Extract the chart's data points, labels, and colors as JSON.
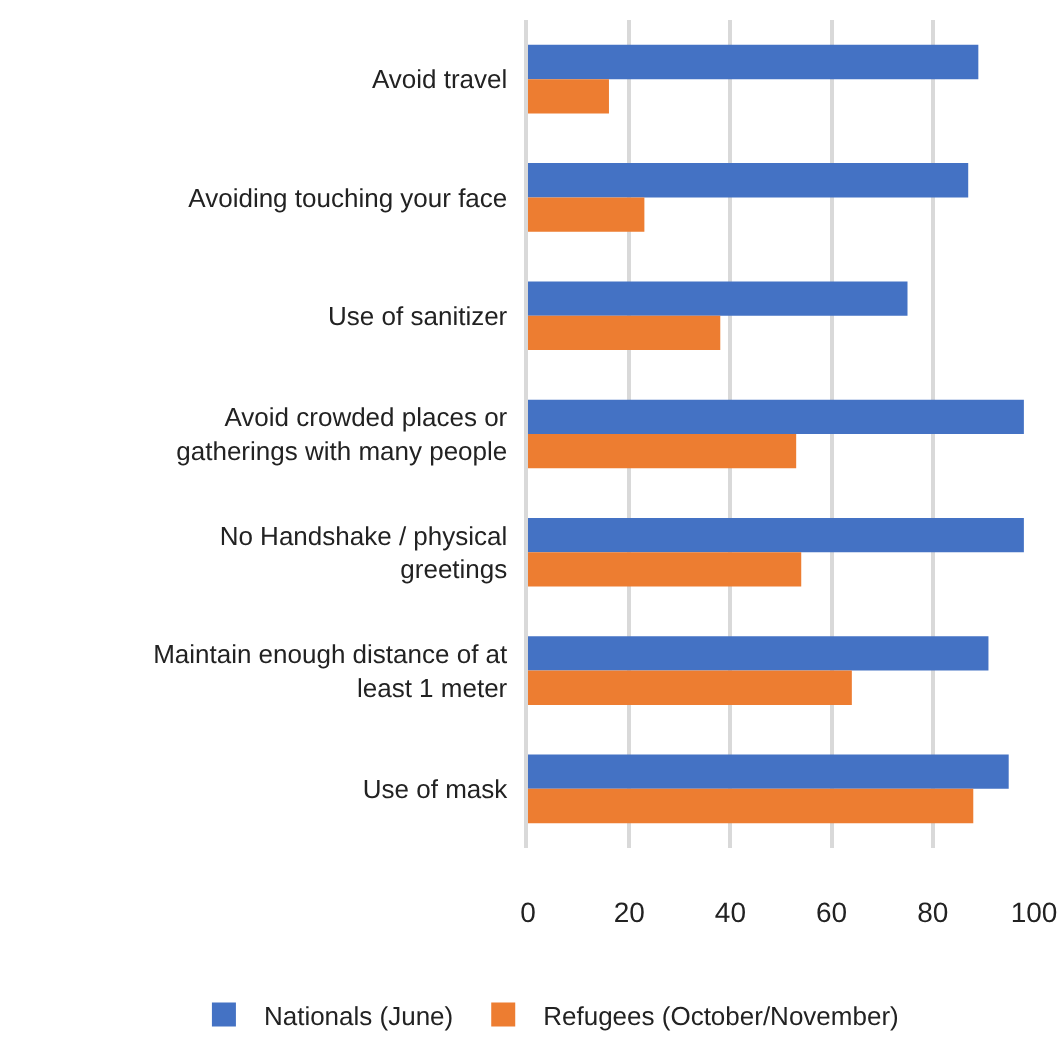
{
  "chart_data": {
    "type": "bar",
    "orientation": "horizontal",
    "categories": [
      "Avoid travel",
      "Avoiding touching your face",
      "Use of sanitizer",
      "Avoid crowded places or gatherings with many people",
      "No Handshake / physical greetings",
      "Maintain enough distance of at least 1 meter",
      "Use of mask"
    ],
    "series": [
      {
        "name": "Nationals (June)",
        "color": "#4472c4",
        "values": [
          89,
          87,
          75,
          98,
          98,
          91,
          95
        ]
      },
      {
        "name": "Refugees (October/November)",
        "color": "#ed7d31",
        "values": [
          16,
          23,
          38,
          53,
          54,
          64,
          88
        ]
      }
    ],
    "xlim": [
      0,
      100
    ],
    "xticks": [
      0,
      20,
      40,
      60,
      80,
      100
    ],
    "grid": "x",
    "legend": "bottom"
  }
}
